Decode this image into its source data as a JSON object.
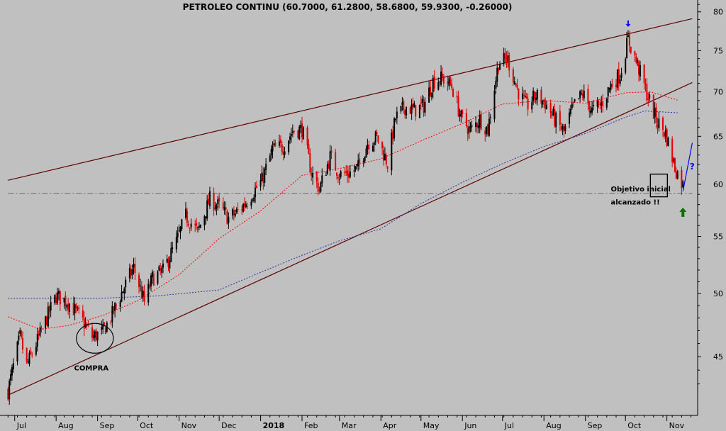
{
  "chart_data": {
    "type": "candlestick",
    "title": "PETROLEO CONTINU (60.7000, 61.2800, 58.6800, 59.9300, -0.26000)",
    "xlabel": "",
    "ylabel": "",
    "ylim": [
      40.8,
      81.6
    ],
    "y_scale": "log",
    "grid": false,
    "x_ticks": [
      "Jul",
      "Aug",
      "Sep",
      "Oct",
      "Nov",
      "Dec",
      "2018",
      "Feb",
      "Mar",
      "Apr",
      "May",
      "Jun",
      "Jul",
      "Aug",
      "Sep",
      "Oct",
      "Nov"
    ],
    "y_ticks": [
      45,
      50,
      55,
      60,
      65,
      70,
      75,
      80
    ],
    "last_bar": {
      "open": 60.7,
      "high": 61.28,
      "low": 58.68,
      "close": 59.93,
      "change": -0.26
    },
    "price_path": [
      [
        "2017-06-26",
        42.5
      ],
      [
        "2017-07-05",
        46.5
      ],
      [
        "2017-07-10",
        44.3
      ],
      [
        "2017-07-20",
        46.7
      ],
      [
        "2017-08-01",
        49.8
      ],
      [
        "2017-08-10",
        49.3
      ],
      [
        "2017-08-20",
        47.9
      ],
      [
        "2017-08-28",
        46.5
      ],
      [
        "2017-09-05",
        46.9
      ],
      [
        "2017-09-12",
        48.3
      ],
      [
        "2017-09-20",
        50.3
      ],
      [
        "2017-09-28",
        52.2
      ],
      [
        "2017-10-06",
        49.3
      ],
      [
        "2017-10-12",
        51.3
      ],
      [
        "2017-10-20",
        51.9
      ],
      [
        "2017-10-30",
        54.5
      ],
      [
        "2017-11-06",
        56.9
      ],
      [
        "2017-11-15",
        55.4
      ],
      [
        "2017-11-24",
        58.5
      ],
      [
        "2017-12-01",
        57.8
      ],
      [
        "2017-12-08",
        56.7
      ],
      [
        "2017-12-15",
        57.3
      ],
      [
        "2017-12-22",
        58.4
      ],
      [
        "2018-01-02",
        60.4
      ],
      [
        "2018-01-10",
        63.6
      ],
      [
        "2018-01-18",
        63.9
      ],
      [
        "2018-01-25",
        65.6
      ],
      [
        "2018-02-01",
        65.8
      ],
      [
        "2018-02-08",
        61.2
      ],
      [
        "2018-02-14",
        59.5
      ],
      [
        "2018-02-22",
        62.8
      ],
      [
        "2018-03-01",
        61.0
      ],
      [
        "2018-03-08",
        61.1
      ],
      [
        "2018-03-15",
        61.7
      ],
      [
        "2018-03-22",
        64.3
      ],
      [
        "2018-03-29",
        64.9
      ],
      [
        "2018-04-06",
        62.1
      ],
      [
        "2018-04-12",
        67.0
      ],
      [
        "2018-04-19",
        68.3
      ],
      [
        "2018-04-26",
        67.9
      ],
      [
        "2018-05-03",
        68.4
      ],
      [
        "2018-05-10",
        71.3
      ],
      [
        "2018-05-17",
        71.6
      ],
      [
        "2018-05-24",
        70.7
      ],
      [
        "2018-05-31",
        67.0
      ],
      [
        "2018-06-07",
        65.6
      ],
      [
        "2018-06-14",
        66.9
      ],
      [
        "2018-06-20",
        65.7
      ],
      [
        "2018-06-28",
        73.5
      ],
      [
        "2018-07-05",
        73.9
      ],
      [
        "2018-07-12",
        70.3
      ],
      [
        "2018-07-19",
        68.3
      ],
      [
        "2018-07-26",
        69.6
      ],
      [
        "2018-08-02",
        68.7
      ],
      [
        "2018-08-09",
        66.9
      ],
      [
        "2018-08-16",
        65.4
      ],
      [
        "2018-08-23",
        68.3
      ],
      [
        "2018-08-30",
        69.8
      ],
      [
        "2018-09-06",
        67.8
      ],
      [
        "2018-09-13",
        68.6
      ],
      [
        "2018-09-20",
        70.8
      ],
      [
        "2018-09-27",
        72.1
      ],
      [
        "2018-10-03",
        76.4
      ],
      [
        "2018-10-10",
        73.2
      ],
      [
        "2018-10-17",
        69.8
      ],
      [
        "2018-10-24",
        66.8
      ],
      [
        "2018-10-31",
        65.3
      ],
      [
        "2018-11-07",
        61.7
      ],
      [
        "2018-11-13",
        59.9
      ]
    ],
    "series": [
      {
        "type": "moving_average",
        "color": "#ff0000",
        "style": "dotted",
        "points": [
          [
            "2017-06-26",
            48.1
          ],
          [
            "2017-07-20",
            47.1
          ],
          [
            "2017-08-10",
            47.4
          ],
          [
            "2017-09-05",
            48.2
          ],
          [
            "2017-10-01",
            49.4
          ],
          [
            "2017-11-01",
            51.6
          ],
          [
            "2017-12-01",
            54.8
          ],
          [
            "2018-01-01",
            57.4
          ],
          [
            "2018-02-01",
            60.9
          ],
          [
            "2018-03-01",
            61.6
          ],
          [
            "2018-04-01",
            62.6
          ],
          [
            "2018-05-01",
            64.5
          ],
          [
            "2018-06-01",
            66.4
          ],
          [
            "2018-07-01",
            68.6
          ],
          [
            "2018-08-01",
            69.0
          ],
          [
            "2018-09-01",
            68.7
          ],
          [
            "2018-10-01",
            69.9
          ],
          [
            "2018-10-20",
            70.0
          ],
          [
            "2018-11-10",
            69.0
          ]
        ]
      },
      {
        "type": "moving_average",
        "color": "#3030a0",
        "style": "dotted",
        "points": [
          [
            "2017-06-26",
            49.6
          ],
          [
            "2017-09-01",
            49.6
          ],
          [
            "2017-10-15",
            49.8
          ],
          [
            "2017-12-01",
            50.3
          ],
          [
            "2018-01-01",
            51.8
          ],
          [
            "2018-02-01",
            53.3
          ],
          [
            "2018-03-01",
            54.6
          ],
          [
            "2018-04-01",
            55.7
          ],
          [
            "2018-05-01",
            58.1
          ],
          [
            "2018-06-01",
            60.2
          ],
          [
            "2018-07-01",
            62.1
          ],
          [
            "2018-08-01",
            63.9
          ],
          [
            "2018-09-01",
            65.3
          ],
          [
            "2018-10-01",
            67.1
          ],
          [
            "2018-10-15",
            67.8
          ],
          [
            "2018-11-10",
            67.6
          ]
        ]
      }
    ],
    "trendlines": [
      {
        "from": [
          "2017-06-26",
          60.4
        ],
        "to": [
          "2018-11-20",
          79.1
        ],
        "color": "#600000"
      },
      {
        "from": [
          "2017-06-26",
          42.2
        ],
        "to": [
          "2018-11-20",
          71.1
        ],
        "color": "#600000"
      },
      {
        "from": [
          "2017-06-26",
          59.1
        ],
        "to": [
          "2018-11-20",
          59.1
        ],
        "color": "#6a6a6a",
        "style": "dash-dot"
      }
    ],
    "annotations": [
      {
        "text": "COMPRA",
        "date": "2017-08-30",
        "value": 46.4,
        "shape": "ellipse"
      },
      {
        "text": "Objetivo inicial",
        "date": "2018-09-20",
        "value": 59.3
      },
      {
        "text": "alcanzado !!",
        "date": "2018-09-20",
        "value": 58.0
      },
      {
        "text": "?",
        "date": "2018-11-18",
        "value": 61.5,
        "color": "#0000ff"
      },
      {
        "date": "2018-10-26",
        "value": 59.6,
        "shape": "rectangle"
      },
      {
        "date": "2018-10-03",
        "value": 78.4,
        "shape": "arrow-down",
        "color": "#0000ff"
      },
      {
        "date": "2018-11-13",
        "value": 57.3,
        "shape": "arrow-up",
        "color": "#007000"
      }
    ],
    "projection_line": {
      "from": [
        "2018-11-13",
        59.3
      ],
      "to": [
        "2018-11-20",
        64.3
      ],
      "color": "#0000ff"
    }
  }
}
